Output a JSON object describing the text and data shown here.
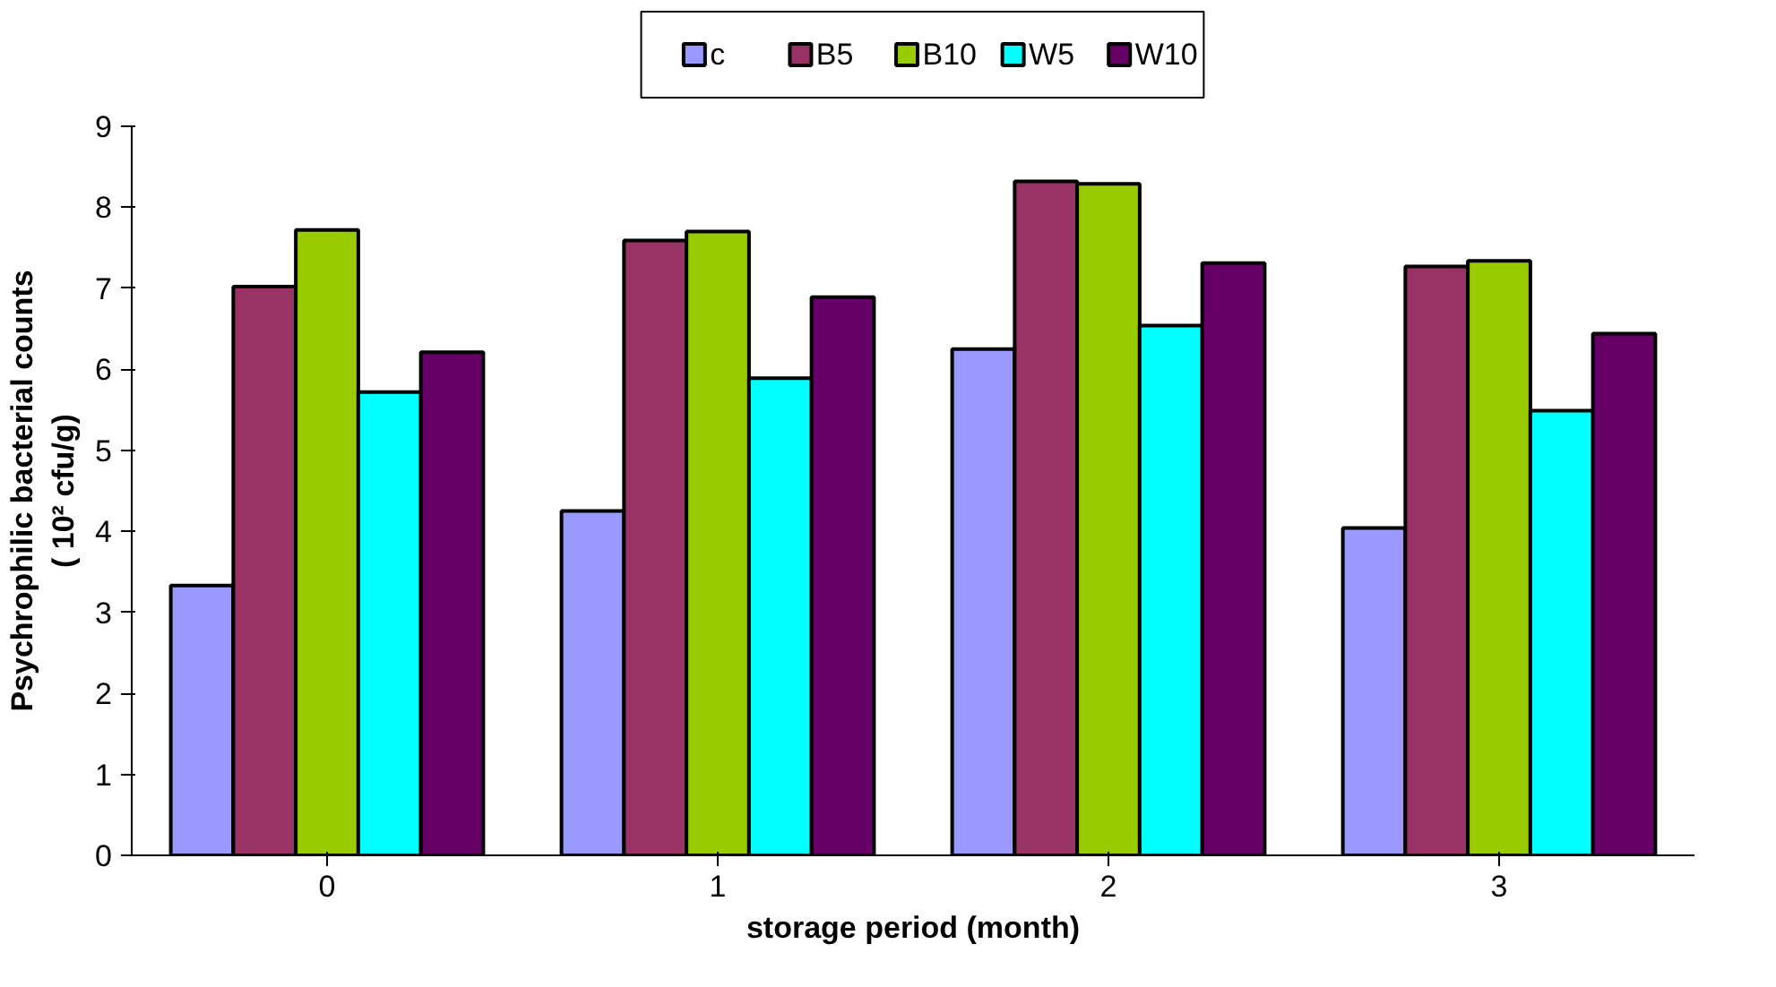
{
  "chart_data": {
    "type": "bar",
    "xlabel": "storage period (month)",
    "ylabel": "Psychrophilic bacterial counts\n( 10² cfu/g)",
    "categories": [
      "0",
      "1",
      "2",
      "3"
    ],
    "series": [
      {
        "name": "c",
        "color": "#9999ff",
        "values": [
          3.33,
          4.25,
          6.25,
          4.04
        ]
      },
      {
        "name": "B5",
        "color": "#993366",
        "values": [
          7.02,
          7.59,
          8.32,
          7.27
        ]
      },
      {
        "name": "B10",
        "color": "#99cc00",
        "values": [
          7.72,
          7.7,
          8.29,
          7.34
        ]
      },
      {
        "name": "W5",
        "color": "#00ffff",
        "values": [
          5.72,
          5.89,
          6.54,
          5.49
        ]
      },
      {
        "name": "W10",
        "color": "#660066",
        "values": [
          6.21,
          6.89,
          7.31,
          6.44
        ]
      }
    ],
    "ylim": [
      0,
      9
    ],
    "yticks": [
      0,
      1,
      2,
      3,
      4,
      5,
      6,
      7,
      8,
      9
    ],
    "grid": false,
    "legend": "top"
  }
}
